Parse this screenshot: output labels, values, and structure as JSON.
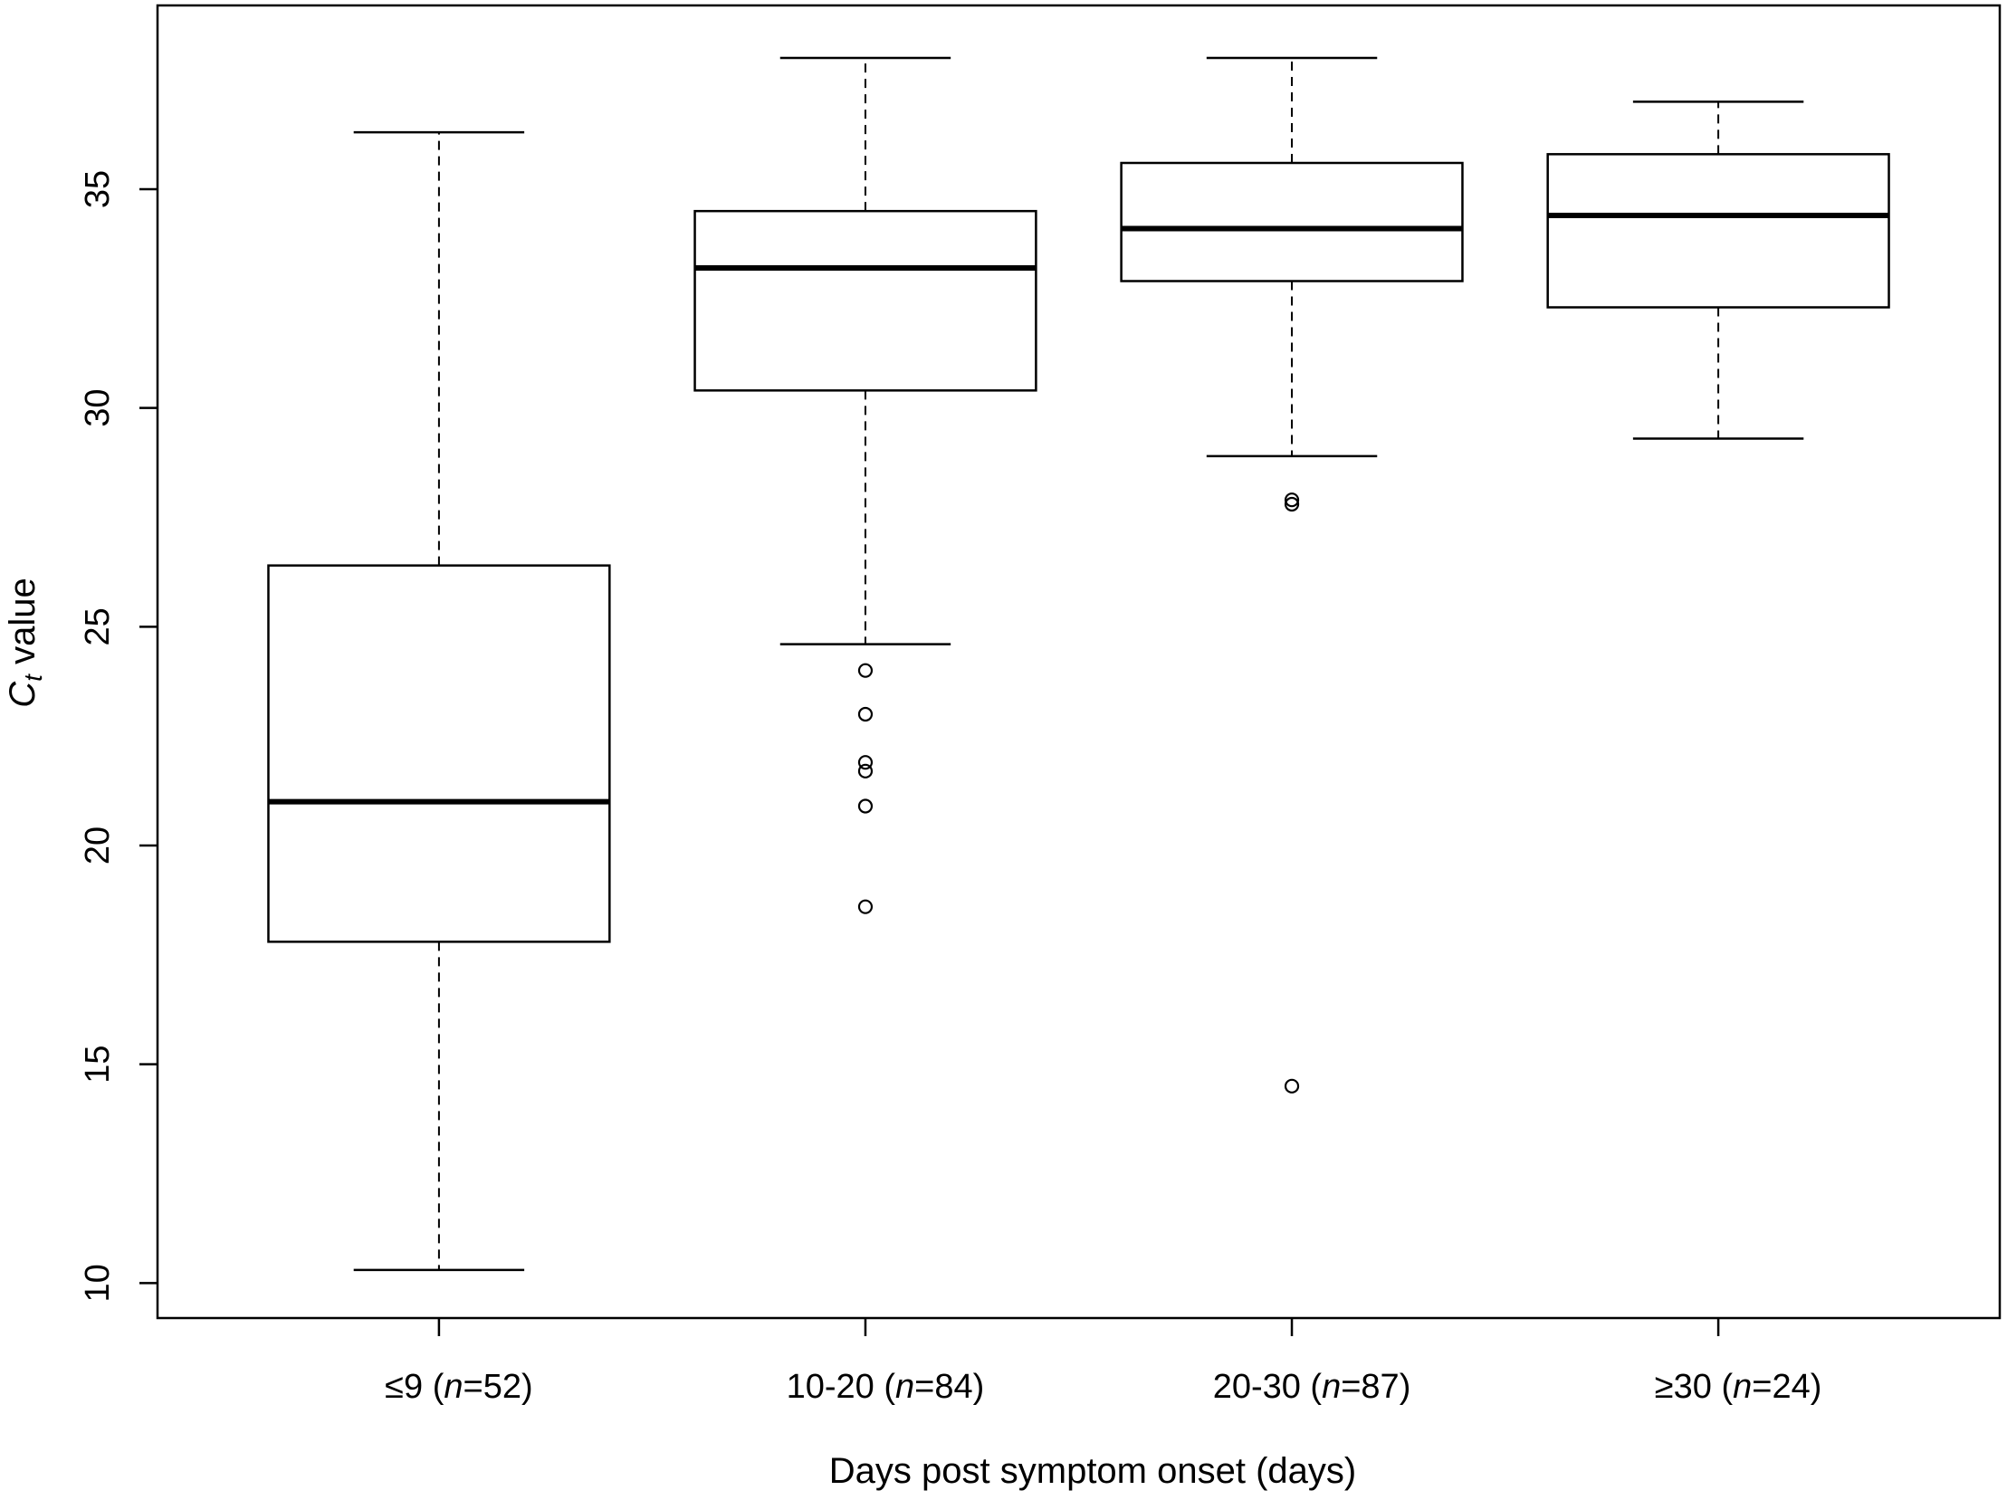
{
  "chart_data": {
    "type": "box",
    "xlabel": "Days post symptom onset (days)",
    "ylabel_main": "C",
    "ylabel_sub": "t",
    "ylabel_rest": " value",
    "ylim": [
      9.2,
      39.2
    ],
    "yticks": [
      10,
      15,
      20,
      25,
      30,
      35
    ],
    "groups": [
      {
        "range": "≤9 (",
        "n_italic": "n",
        "n_rest": "=52)",
        "whisker_low": 10.3,
        "q1": 17.8,
        "median": 21.0,
        "q3": 26.4,
        "whisker_high": 36.3,
        "outliers": []
      },
      {
        "range": "10-20 (",
        "n_italic": "n",
        "n_rest": "=84)",
        "whisker_low": 24.6,
        "q1": 30.4,
        "median": 33.2,
        "q3": 34.5,
        "whisker_high": 38.0,
        "outliers": [
          24.0,
          23.0,
          21.9,
          21.7,
          20.9,
          18.6
        ]
      },
      {
        "range": "20-30 (",
        "n_italic": "n",
        "n_rest": "=87)",
        "whisker_low": 28.9,
        "q1": 32.9,
        "median": 34.1,
        "q3": 35.6,
        "whisker_high": 38.0,
        "outliers": [
          27.9,
          27.8,
          14.5
        ]
      },
      {
        "range": "≥30 (",
        "n_italic": "n",
        "n_rest": "=24)",
        "whisker_low": 29.3,
        "q1": 32.3,
        "median": 34.4,
        "q3": 35.8,
        "whisker_high": 37.0,
        "outliers": []
      }
    ]
  }
}
